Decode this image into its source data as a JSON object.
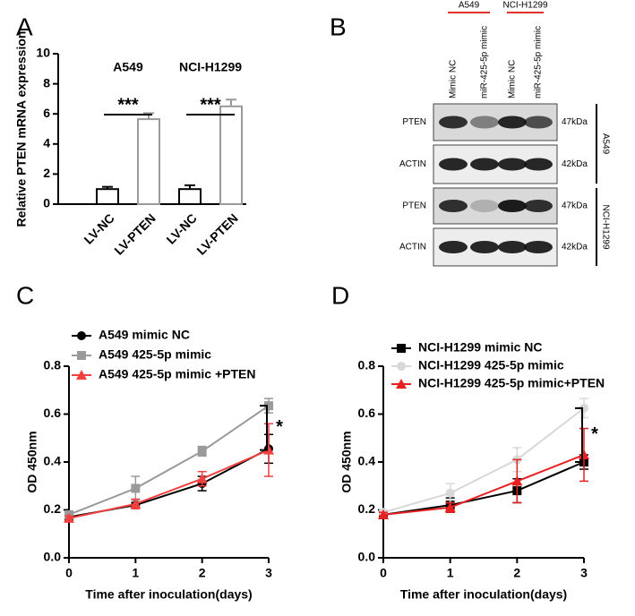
{
  "chart_data": [
    {
      "panel": "A",
      "type": "bar",
      "ylabel": "Relative PTEN mRNA expression",
      "categories": [
        "LV-NC",
        "LV-PTEN",
        "LV-NC",
        "LV-PTEN"
      ],
      "values": [
        1.0,
        5.65,
        1.0,
        6.5
      ],
      "errors": [
        0.15,
        0.4,
        0.25,
        0.45
      ],
      "colors": [
        "#000000",
        "#9a9a9a",
        "#000000",
        "#9a9a9a"
      ],
      "groups": [
        {
          "name": "A549",
          "significance": "***"
        },
        {
          "name": "NCI-H1299",
          "significance": "***"
        }
      ],
      "ylim": [
        0,
        10
      ],
      "yticks": [
        0,
        2,
        4,
        6,
        8,
        10
      ]
    },
    {
      "panel": "C",
      "type": "line",
      "xlabel": "Time after inoculation(days)",
      "ylabel": "OD 450nm",
      "x": [
        0,
        1,
        2,
        3
      ],
      "xlim": [
        0,
        3
      ],
      "xticks": [
        0,
        1,
        2,
        3
      ],
      "ylim": [
        0,
        0.8
      ],
      "yticks": [
        {
          "value": 0,
          "label": "0.0"
        },
        0.2,
        0.4,
        0.6,
        0.8
      ],
      "legend": "upper left",
      "significance": "*",
      "series": [
        {
          "name": "A549 mimic NC",
          "color": "#000000",
          "marker": "circle",
          "values": [
            0.17,
            0.22,
            0.31,
            0.455
          ],
          "errors": [
            0.01,
            0.01,
            0.03,
            0.06
          ]
        },
        {
          "name": "A549 425-5p mimic",
          "color": "#9a9a9a",
          "marker": "square",
          "values": [
            0.18,
            0.29,
            0.445,
            0.635
          ],
          "errors": [
            0.01,
            0.05,
            0.02,
            0.03
          ]
        },
        {
          "name": "A549 425-5p mimic +PTEN",
          "color": "#f04040",
          "marker": "triangle",
          "values": [
            0.165,
            0.225,
            0.33,
            0.45
          ],
          "errors": [
            0.01,
            0.02,
            0.03,
            0.11
          ]
        }
      ]
    },
    {
      "panel": "D",
      "type": "line",
      "xlabel": "Time after inoculation(days)",
      "ylabel": "OD 450nm",
      "x": [
        0,
        1,
        2,
        3
      ],
      "xlim": [
        0,
        3
      ],
      "xticks": [
        0,
        1,
        2,
        3
      ],
      "ylim": [
        0,
        0.8
      ],
      "yticks": [
        {
          "value": 0,
          "label": "0.0"
        },
        0.2,
        0.4,
        0.6,
        0.8
      ],
      "legend": "upper left",
      "significance": "*",
      "series": [
        {
          "name": "NCI-H1299 mimic NC",
          "color": "#000000",
          "marker": "square",
          "values": [
            0.18,
            0.22,
            0.28,
            0.4
          ],
          "errors": [
            0.01,
            0.03,
            0.05,
            0.03
          ]
        },
        {
          "name": "NCI-H1299 425-5p mimic",
          "color": "#d8d8d8",
          "marker": "circle",
          "values": [
            0.19,
            0.27,
            0.41,
            0.625
          ],
          "errors": [
            0.01,
            0.04,
            0.05,
            0.04
          ]
        },
        {
          "name": "NCI-H1299 425-5p mimic+PTEN",
          "color": "#e82020",
          "marker": "triangle",
          "values": [
            0.18,
            0.21,
            0.32,
            0.43
          ],
          "errors": [
            0.01,
            0.02,
            0.09,
            0.11
          ]
        }
      ]
    }
  ],
  "blot": {
    "panel": "B",
    "cell_lines": [
      "A549",
      "NCI-H1299"
    ],
    "lanes": [
      "Mimic NC",
      "miR-425-5p mimic",
      "Mimic NC",
      "miR-425-5p mimic"
    ],
    "rows": [
      {
        "protein": "PTEN",
        "size": "47kDa"
      },
      {
        "protein": "ACTIN",
        "size": "42kDa"
      },
      {
        "protein": "PTEN",
        "size": "47kDa"
      },
      {
        "protein": "ACTIN",
        "size": "42kDa"
      }
    ]
  }
}
